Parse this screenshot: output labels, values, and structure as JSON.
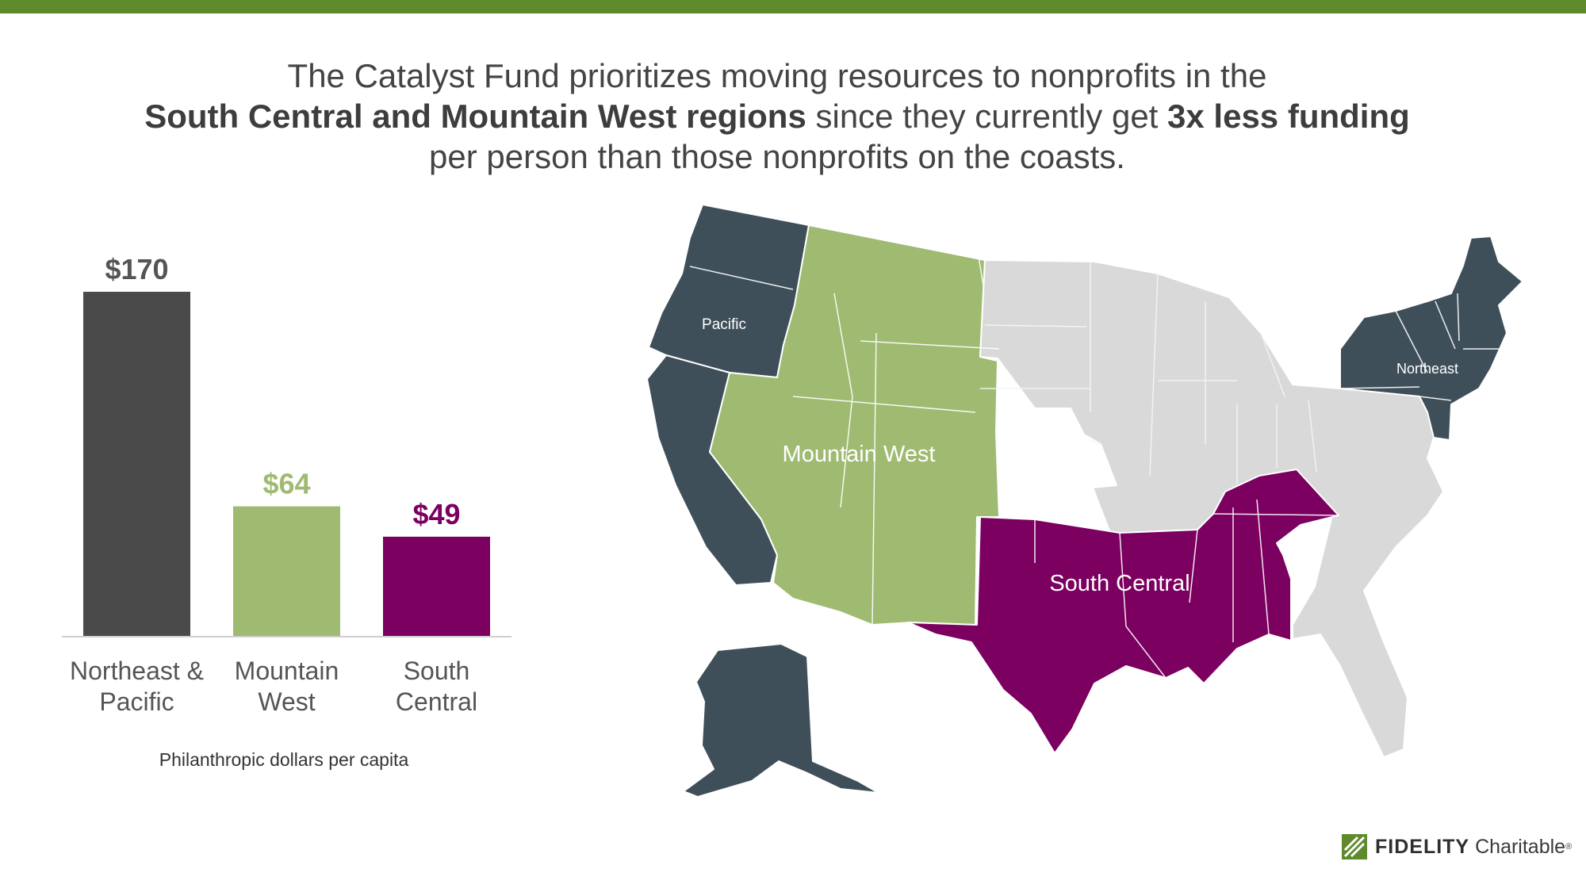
{
  "colors": {
    "top_bar": "#5f8a2c",
    "northeast_pacific": "#4a4a4a",
    "mountain_west": "#9fba71",
    "south_central": "#7b0060",
    "map_coast": "#3f4f59",
    "map_other": "#d9d9d9",
    "text": "#444444"
  },
  "headline": {
    "line1": "The Catalyst Fund prioritizes moving resources to nonprofits in the",
    "line2_bold1": "South Central and Mountain West regions",
    "line2_mid": " since they currently get ",
    "line2_bold2": "3x less funding",
    "line3": "per person than those nonprofits on the coasts."
  },
  "chart_data": {
    "type": "bar",
    "categories": [
      "Northeast & Pacific",
      "Mountain West",
      "South Central"
    ],
    "category_lines": [
      [
        "Northeast &",
        "Pacific"
      ],
      [
        "Mountain",
        "West"
      ],
      [
        "South",
        "Central"
      ]
    ],
    "values": [
      170,
      64,
      49
    ],
    "value_labels": [
      "$170",
      "$64",
      "$49"
    ],
    "bar_colors": [
      "#4a4a4a",
      "#9fba71",
      "#7b0060"
    ],
    "label_colors": [
      "#555555",
      "#9fba71",
      "#7b0060"
    ],
    "xlabel": "Philanthropic dollars per capita",
    "ylim": [
      0,
      170
    ],
    "grid": false,
    "legend": "none"
  },
  "map": {
    "labels": {
      "pacific": "Pacific",
      "northeast": "Northeast",
      "mountain_west": "Mountain West",
      "south_central": "South Central"
    }
  },
  "logo": {
    "brand": "FIDELITY",
    "sub": "Charitable",
    "mark": "®"
  }
}
